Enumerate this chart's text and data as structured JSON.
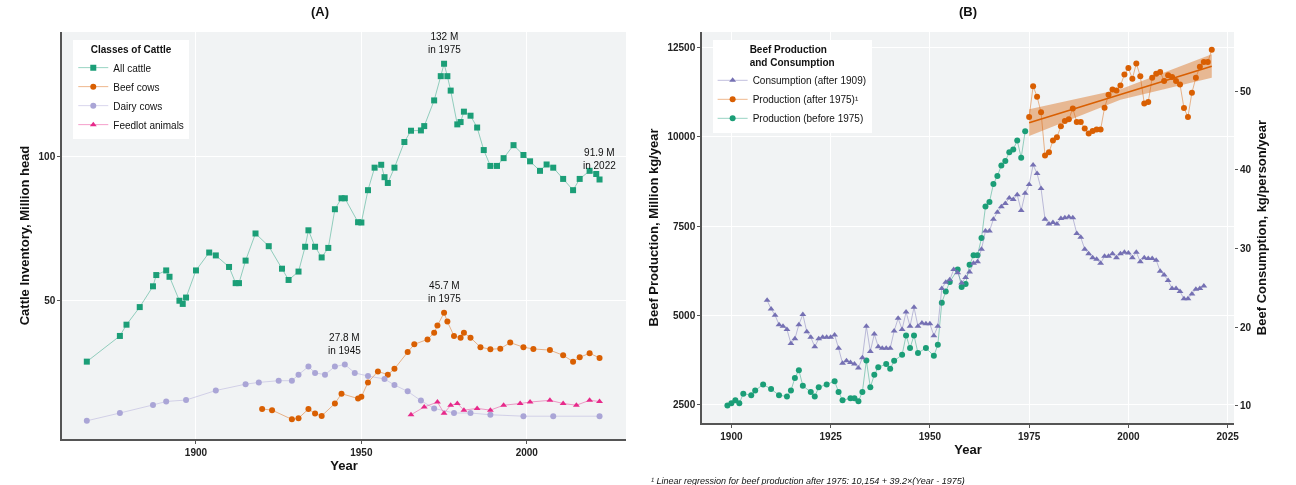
{
  "chart_data": [
    {
      "type": "line",
      "title": "(A)",
      "xlabel": "Year",
      "ylabel": "Cattle Inventory, Million head",
      "legend_title": "Classes of Cattle",
      "xlim": [
        1859.5,
        2030
      ],
      "xticks": [
        1900,
        1950,
        2000
      ],
      "ylim": [
        2,
        143
      ],
      "yticks": [
        50,
        100
      ],
      "grid": true,
      "legend": "top left",
      "line_style": "solid",
      "series": [
        {
          "name": "All cattle",
          "color": "#1b9e77",
          "marker": "square",
          "x": [
            1867,
            1877,
            1879,
            1883,
            1887,
            1888,
            1891,
            1892,
            1895,
            1896,
            1897,
            1900,
            1904,
            1906,
            1910,
            1912,
            1913,
            1915,
            1918,
            1922,
            1926,
            1928,
            1931,
            1933,
            1934,
            1936,
            1938,
            1940,
            1942,
            1944,
            1945,
            1949,
            1950,
            1952,
            1954,
            1956,
            1957,
            1958,
            1960,
            1963,
            1965,
            1968,
            1969,
            1972,
            1974,
            1975,
            1976,
            1977,
            1979,
            1980,
            1981,
            1983,
            1985,
            1987,
            1989,
            1991,
            1993,
            1996,
            1999,
            2001,
            2004,
            2006,
            2008,
            2011,
            2014,
            2016,
            2019,
            2021,
            2022
          ],
          "values": [
            28.8,
            37.7,
            41.6,
            47.7,
            54.9,
            58.8,
            60.4,
            58.2,
            49.9,
            48.8,
            51,
            60.4,
            66.6,
            65.6,
            61.6,
            56,
            56,
            63.8,
            73.2,
            68.8,
            61,
            57.1,
            60,
            68.6,
            74.3,
            68.6,
            64.9,
            68.2,
            81.6,
            85.4,
            85.4,
            77.1,
            77,
            88.2,
            96,
            97,
            92.7,
            90.7,
            96,
            104.9,
            108.8,
            108.9,
            110.4,
            119.3,
            127.7,
            132,
            127.7,
            122.7,
            111,
            111.8,
            115.4,
            114,
            109.9,
            102.1,
            96.6,
            96.6,
            99.3,
            103.8,
            100.4,
            98.2,
            94.9,
            97.1,
            96,
            92.1,
            88.2,
            92.1,
            94.9,
            93.8,
            91.9
          ]
        },
        {
          "name": "Beef cows",
          "color": "#d95f02",
          "marker": "circle",
          "x": [
            1920,
            1923,
            1929,
            1931,
            1934,
            1936,
            1938,
            1942,
            1944,
            1949,
            1950,
            1952,
            1955,
            1958,
            1960,
            1964,
            1966,
            1970,
            1972,
            1973,
            1975,
            1976,
            1978,
            1980,
            1981,
            1983,
            1986,
            1989,
            1992,
            1995,
            1999,
            2002,
            2007,
            2011,
            2014,
            2016,
            2019,
            2022
          ],
          "values": [
            12.4,
            12,
            8.8,
            9.2,
            12.4,
            10.8,
            10,
            14.3,
            17.7,
            16,
            16.6,
            21.6,
            25.4,
            24.3,
            26.3,
            32.1,
            34.8,
            36.5,
            38.8,
            41.3,
            45.7,
            42.7,
            37.7,
            37.1,
            38.8,
            37.1,
            33.8,
            33.1,
            33.3,
            35.4,
            33.8,
            33.2,
            32.8,
            31,
            28.8,
            30.3,
            31.7,
            30.1
          ]
        },
        {
          "name": "Dairy cows",
          "color": "#aaa5d6",
          "marker": "circle",
          "x": [
            1867,
            1877,
            1887,
            1891,
            1897,
            1906,
            1915,
            1919,
            1925,
            1929,
            1931,
            1934,
            1936,
            1939,
            1942,
            1945,
            1948,
            1952,
            1957,
            1960,
            1964,
            1968,
            1972,
            1978,
            1983,
            1989,
            1999,
            2008,
            2022
          ],
          "values": [
            8.3,
            11,
            13.8,
            15,
            15.5,
            18.8,
            21,
            21.6,
            22.2,
            22.2,
            24.3,
            27.1,
            24.9,
            24.3,
            27.1,
            27.8,
            24.9,
            23.8,
            22.8,
            20.7,
            18.5,
            15.3,
            12.6,
            11,
            11,
            10.4,
            9.9,
            9.9,
            9.9
          ]
        },
        {
          "name": "Feedlot animals",
          "color": "#e7298a",
          "marker": "triangle",
          "x": [
            1965,
            1969,
            1973,
            1975,
            1977,
            1979,
            1981,
            1985,
            1989,
            1993,
            1998,
            2001,
            2007,
            2011,
            2015,
            2019,
            2022
          ],
          "values": [
            10.4,
            13.1,
            14.8,
            10.9,
            13.7,
            14.3,
            12,
            12.6,
            12,
            13.7,
            14.3,
            14.8,
            15.4,
            14.3,
            13.7,
            15.4,
            15
          ]
        }
      ],
      "annotations": [
        {
          "text": "132 M\nin 1975",
          "x": 1975,
          "y": 132
        },
        {
          "text": "91.9 M\nin 2022",
          "x": 2022,
          "y": 91.9
        },
        {
          "text": "45.7 M\nin 1975",
          "x": 1975,
          "y": 45.7
        },
        {
          "text": "27.8 M\nin 1945",
          "x": 1945,
          "y": 27.8
        }
      ]
    },
    {
      "type": "line",
      "title": "(B)",
      "xlabel": "Year",
      "ylabel": "Beef Production, Million kg/year",
      "y2label": "Beef Consumption, kg/person/year",
      "legend_title": "Beef Production\nand Consumption",
      "xlim": [
        1892.6,
        2026.6
      ],
      "xticks": [
        1900,
        1925,
        1950,
        1975,
        2000,
        2025
      ],
      "ylim": [
        1990,
        12940
      ],
      "yticks": [
        2500,
        5000,
        7500,
        10000,
        12500
      ],
      "y2lim": [
        7.8,
        57.5
      ],
      "y2ticks": [
        10,
        20,
        30,
        40,
        50
      ],
      "grid": true,
      "legend": "top left",
      "line_style": "solid",
      "series": [
        {
          "name": "Production (before 1975)",
          "color": "#1b9e77",
          "marker": "circle",
          "x": [
            1899,
            1900,
            1901,
            1902,
            1903,
            1905,
            1906,
            1908,
            1910,
            1912,
            1914,
            1915,
            1916,
            1917,
            1918,
            1920,
            1921,
            1922,
            1924,
            1926,
            1927,
            1928,
            1930,
            1931,
            1932,
            1933,
            1934,
            1935,
            1936,
            1937,
            1939,
            1940,
            1941,
            1943,
            1944,
            1945,
            1946,
            1947,
            1949,
            1951,
            1952,
            1953,
            1954,
            1955,
            1957,
            1958,
            1959,
            1960,
            1961,
            1962,
            1963,
            1964,
            1965,
            1966,
            1967,
            1968,
            1969,
            1970,
            1971,
            1972,
            1973,
            1974
          ],
          "values": [
            2480,
            2545,
            2630,
            2545,
            2810,
            2770,
            2900,
            3070,
            2940,
            2770,
            2730,
            2900,
            3250,
            3470,
            3030,
            2860,
            2730,
            2990,
            3070,
            3160,
            2860,
            2630,
            2680,
            2680,
            2600,
            2860,
            3740,
            2990,
            3340,
            3550,
            3640,
            3510,
            3730,
            3900,
            4440,
            4090,
            4440,
            3950,
            4090,
            3870,
            4180,
            5360,
            5670,
            5940,
            6290,
            5800,
            5880,
            6420,
            6690,
            6690,
            7170,
            8050,
            8180,
            8680,
            8910,
            9200,
            9330,
            9570,
            9650,
            9900,
            9420,
            10160
          ]
        },
        {
          "name": "Production (after 1975)¹",
          "color": "#d95f02",
          "marker": "circle",
          "x": [
            1975,
            1976,
            1977,
            1978,
            1979,
            1980,
            1981,
            1982,
            1983,
            1984,
            1985,
            1986,
            1987,
            1988,
            1989,
            1990,
            1991,
            1992,
            1993,
            1994,
            1995,
            1996,
            1997,
            1998,
            1999,
            2000,
            2001,
            2002,
            2003,
            2004,
            2005,
            2006,
            2007,
            2008,
            2009,
            2010,
            2011,
            2012,
            2013,
            2014,
            2015,
            2016,
            2017,
            2018,
            2019,
            2020,
            2021
          ],
          "values": [
            10560,
            11420,
            11130,
            10690,
            9480,
            9570,
            9900,
            9990,
            10300,
            10450,
            10500,
            10800,
            10420,
            10420,
            10240,
            10100,
            10170,
            10210,
            10210,
            10820,
            11180,
            11330,
            11300,
            11440,
            11750,
            11930,
            11630,
            12060,
            11700,
            10940,
            10980,
            11660,
            11770,
            11820,
            11570,
            11730,
            11680,
            11570,
            11470,
            10810,
            10560,
            11240,
            11660,
            11970,
            12100,
            12100,
            12440
          ]
        },
        {
          "type": "line",
          "color": "#d95f02",
          "marker": "none",
          "x": [
            1975,
            1998,
            2021
          ],
          "values": [
            10400,
            11190,
            11980
          ],
          "lower": [
            10030,
            11040,
            11660
          ],
          "upper": [
            10780,
            11340,
            12320
          ]
        },
        {
          "name": "Consumption (after 1909)",
          "color": "#7570b3",
          "marker": "triangle",
          "axis": "y2",
          "x": [
            1909,
            1910,
            1911,
            1912,
            1913,
            1914,
            1915,
            1916,
            1917,
            1918,
            1919,
            1920,
            1921,
            1922,
            1923,
            1924,
            1925,
            1926,
            1927,
            1928,
            1929,
            1930,
            1931,
            1932,
            1933,
            1934,
            1935,
            1936,
            1937,
            1938,
            1939,
            1940,
            1941,
            1942,
            1943,
            1944,
            1945,
            1946,
            1947,
            1948,
            1949,
            1950,
            1951,
            1952,
            1953,
            1954,
            1955,
            1956,
            1957,
            1958,
            1959,
            1960,
            1961,
            1962,
            1963,
            1964,
            1965,
            1966,
            1967,
            1968,
            1969,
            1970,
            1971,
            1972,
            1973,
            1974,
            1975,
            1976,
            1977,
            1978,
            1979,
            1980,
            1981,
            1982,
            1983,
            1984,
            1985,
            1986,
            1987,
            1988,
            1989,
            1990,
            1991,
            1992,
            1993,
            1994,
            1995,
            1996,
            1997,
            1998,
            1999,
            2000,
            2001,
            2002,
            2003,
            2004,
            2005,
            2006,
            2007,
            2008,
            2009,
            2010,
            2011,
            2012,
            2013,
            2014,
            2015,
            2016,
            2017,
            2018,
            2019
          ],
          "values": [
            23.4,
            22.3,
            21.5,
            20.3,
            20.1,
            19.7,
            17.9,
            18.5,
            20.3,
            21.6,
            19.4,
            18.7,
            17.5,
            18.5,
            18.7,
            18.7,
            18.7,
            19.0,
            17.3,
            15.4,
            15.7,
            15.5,
            15.3,
            14.8,
            16.1,
            20.1,
            16.9,
            19.1,
            17.5,
            17.3,
            17.3,
            17.3,
            19.5,
            21.1,
            19.7,
            21.9,
            20.1,
            22.5,
            20.1,
            20.5,
            20.4,
            20.4,
            18.9,
            20.1,
            24.9,
            25.7,
            26.0,
            27.3,
            26.9,
            25.6,
            26.3,
            27.0,
            28.1,
            28.3,
            29.9,
            32.2,
            32.2,
            33.7,
            34.6,
            35.3,
            35.7,
            36.4,
            36.2,
            36.8,
            34.8,
            37.0,
            38.1,
            40.6,
            39.5,
            37.6,
            33.7,
            33.1,
            33.3,
            33.1,
            33.8,
            33.9,
            34.0,
            33.9,
            31.9,
            31.4,
            29.9,
            29.3,
            28.8,
            28.6,
            28.1,
            29.0,
            29.0,
            29.3,
            28.8,
            29.3,
            29.5,
            29.4,
            28.8,
            29.5,
            28.3,
            28.8,
            28.7,
            28.7,
            28.5,
            27.1,
            26.6,
            25.9,
            24.9,
            24.9,
            24.5,
            23.6,
            23.6,
            24.2,
            24.8,
            24.9,
            25.2
          ]
        }
      ],
      "annotations": [
        "¹ Linear regression for beef production after 1975: 10,154 + 39.2×(Year - 1975)"
      ]
    }
  ]
}
